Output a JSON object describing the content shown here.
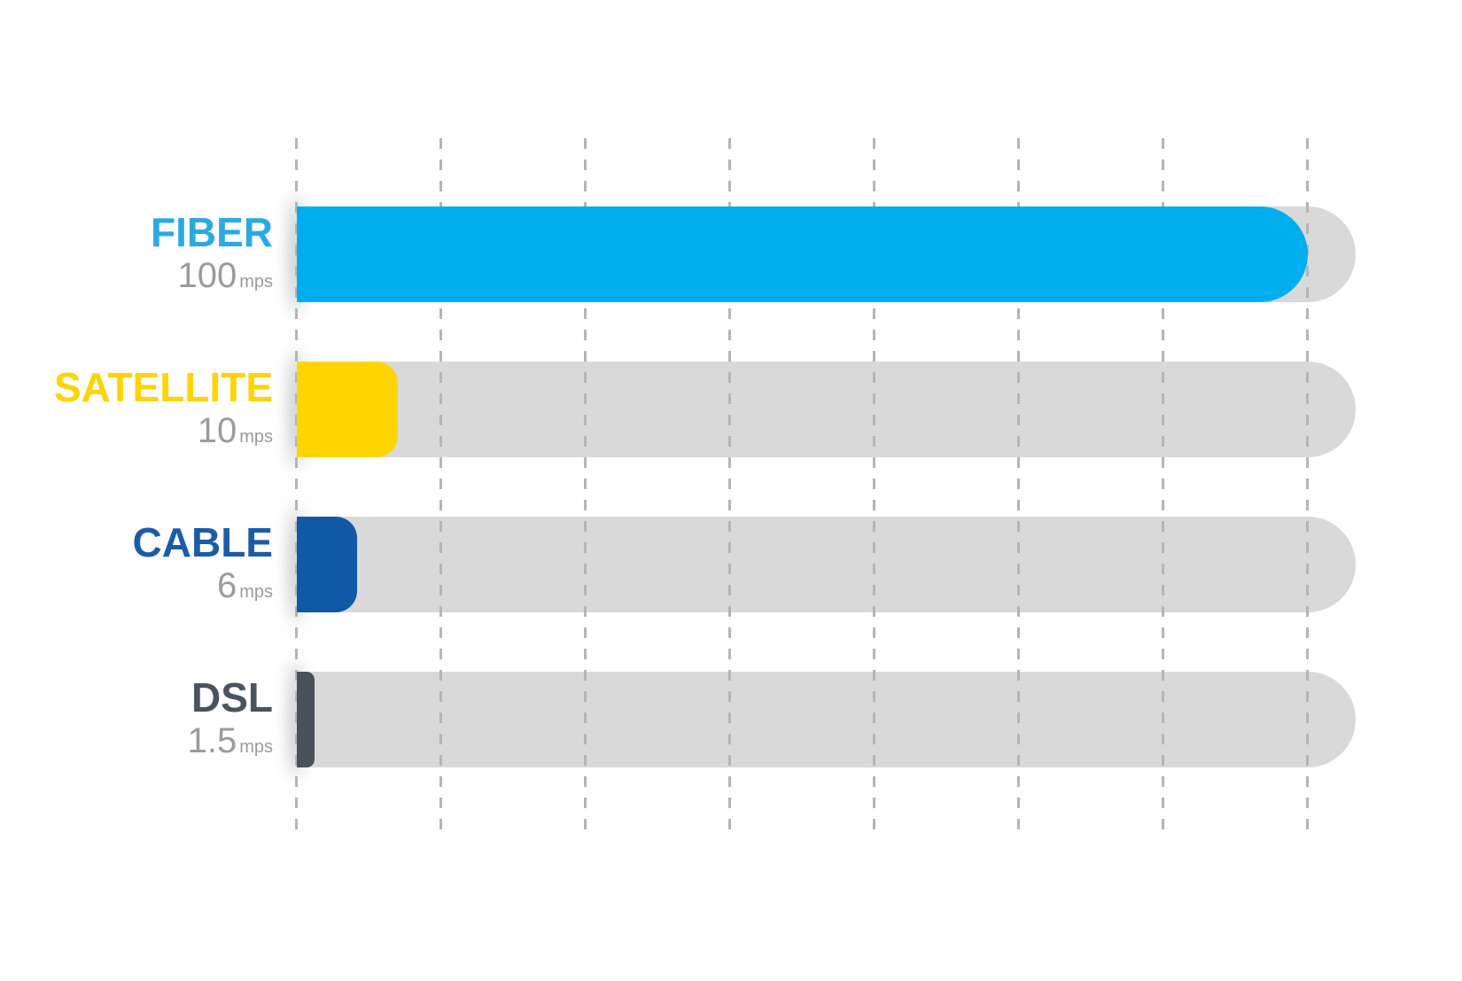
{
  "chart_data": {
    "type": "bar",
    "orientation": "horizontal",
    "title": "",
    "categories": [
      "FIBER",
      "SATELLITE",
      "CABLE",
      "DSL"
    ],
    "values": [
      100,
      10,
      6,
      1.5
    ],
    "unit": "mps",
    "xlim": [
      0,
      100
    ],
    "grid": "dashed-vertical",
    "gridline_count": 8,
    "legend": "none",
    "bars": [
      {
        "label": "FIBER",
        "value": 100,
        "display_value": "100",
        "unit": "mps",
        "color": "#00AEEF",
        "label_color": "#29ABE2"
      },
      {
        "label": "SATELLITE",
        "value": 10,
        "display_value": "10",
        "unit": "mps",
        "color": "#FFD500",
        "label_color": "#FFD400"
      },
      {
        "label": "CABLE",
        "value": 6,
        "display_value": "6",
        "unit": "mps",
        "color": "#1159A6",
        "label_color": "#1B5CA8"
      },
      {
        "label": "DSL",
        "value": 1.5,
        "display_value": "1.5",
        "unit": "mps",
        "color": "#49525B",
        "label_color": "#4A545E"
      }
    ],
    "track_color": "#D9D9D9",
    "gridline_color": "#B5B5B5",
    "value_text_color": "#9B9B9B",
    "background": "#FFFFFF"
  }
}
